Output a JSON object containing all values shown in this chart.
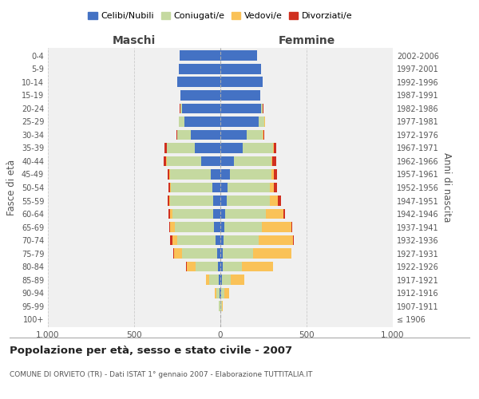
{
  "age_groups": [
    "100+",
    "95-99",
    "90-94",
    "85-89",
    "80-84",
    "75-79",
    "70-74",
    "65-69",
    "60-64",
    "55-59",
    "50-54",
    "45-49",
    "40-44",
    "35-39",
    "30-34",
    "25-29",
    "20-24",
    "15-19",
    "10-14",
    "5-9",
    "0-4"
  ],
  "birth_years": [
    "≤ 1906",
    "1907-1911",
    "1912-1916",
    "1917-1921",
    "1922-1926",
    "1927-1931",
    "1932-1936",
    "1937-1941",
    "1942-1946",
    "1947-1951",
    "1952-1956",
    "1957-1961",
    "1962-1966",
    "1967-1971",
    "1972-1976",
    "1977-1981",
    "1982-1986",
    "1987-1991",
    "1992-1996",
    "1997-2001",
    "2002-2006"
  ],
  "males": {
    "celibi": [
      0,
      2,
      5,
      10,
      15,
      20,
      30,
      35,
      40,
      40,
      45,
      55,
      110,
      150,
      170,
      210,
      220,
      230,
      250,
      240,
      235
    ],
    "coniugati": [
      1,
      5,
      20,
      55,
      130,
      200,
      220,
      230,
      240,
      250,
      240,
      235,
      200,
      160,
      80,
      30,
      10,
      2,
      0,
      0,
      0
    ],
    "vedovi": [
      0,
      2,
      8,
      20,
      50,
      50,
      30,
      25,
      10,
      5,
      5,
      5,
      3,
      2,
      1,
      1,
      2,
      0,
      0,
      0,
      0
    ],
    "divorziati": [
      0,
      0,
      0,
      0,
      2,
      5,
      10,
      8,
      10,
      12,
      12,
      12,
      15,
      10,
      5,
      2,
      2,
      0,
      0,
      0,
      0
    ]
  },
  "females": {
    "nubili": [
      0,
      2,
      5,
      10,
      15,
      15,
      20,
      25,
      30,
      35,
      40,
      55,
      80,
      130,
      155,
      220,
      235,
      230,
      245,
      235,
      215
    ],
    "coniugate": [
      1,
      5,
      18,
      50,
      110,
      175,
      200,
      215,
      235,
      250,
      245,
      240,
      215,
      175,
      90,
      35,
      10,
      2,
      0,
      0,
      0
    ],
    "vedove": [
      1,
      5,
      30,
      80,
      180,
      220,
      200,
      170,
      100,
      50,
      25,
      15,
      8,
      5,
      3,
      2,
      2,
      0,
      0,
      0,
      0
    ],
    "divorziate": [
      0,
      0,
      0,
      0,
      2,
      3,
      5,
      5,
      10,
      15,
      18,
      18,
      20,
      12,
      8,
      3,
      2,
      0,
      0,
      0,
      0
    ]
  },
  "colors": {
    "celibi": "#4472C4",
    "coniugati": "#C5D9A0",
    "vedovi": "#FAC258",
    "divorziati": "#D03020"
  },
  "title": "Popolazione per età, sesso e stato civile - 2007",
  "subtitle": "COMUNE DI ORVIETO (TR) - Dati ISTAT 1° gennaio 2007 - Elaborazione TUTTITALIA.IT",
  "xlabel_left": "Maschi",
  "xlabel_right": "Femmine",
  "ylabel_left": "Fasce di età",
  "ylabel_right": "Anni di nascita",
  "xlim": 1000,
  "legend_labels": [
    "Celibi/Nubili",
    "Coniugati/e",
    "Vedovi/e",
    "Divorziati/e"
  ],
  "bg_color": "#ffffff",
  "grid_color": "#cccccc"
}
